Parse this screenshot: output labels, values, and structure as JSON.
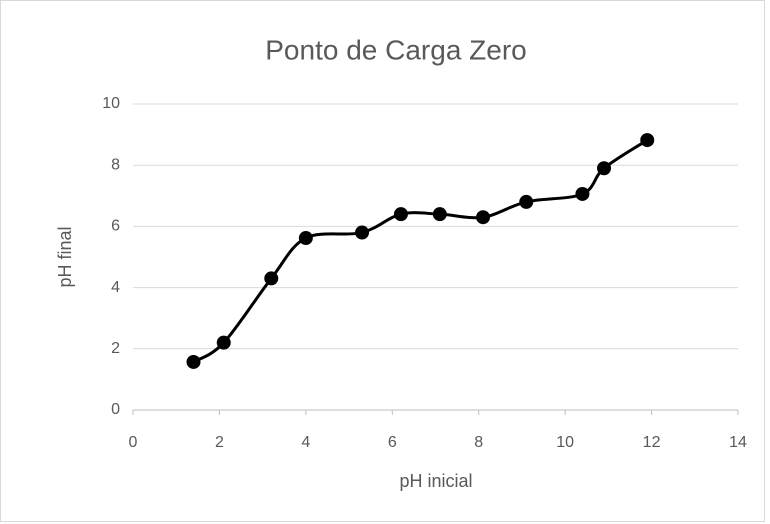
{
  "chart_data": {
    "type": "scatter",
    "title": "Ponto de Carga Zero",
    "x_label": "pH inicial",
    "y_label": "pH final",
    "series": [
      {
        "color": "#000000",
        "x": [
          1.4,
          2.1,
          3.2,
          4.0,
          5.3,
          6.2,
          7.1,
          8.1,
          9.1,
          10.4,
          10.9,
          11.9
        ],
        "values": [
          1.57,
          2.2,
          4.3,
          5.62,
          5.8,
          6.4,
          6.4,
          6.3,
          6.8,
          7.06,
          7.9,
          8.82
        ]
      }
    ],
    "xlim": [
      0,
      14
    ],
    "xticks": [
      0,
      2,
      4,
      6,
      8,
      10,
      12,
      14
    ],
    "ylim": [
      0,
      10
    ],
    "yticks": [
      0,
      2,
      4,
      6,
      8,
      10
    ],
    "grid": true,
    "smooth": true
  }
}
